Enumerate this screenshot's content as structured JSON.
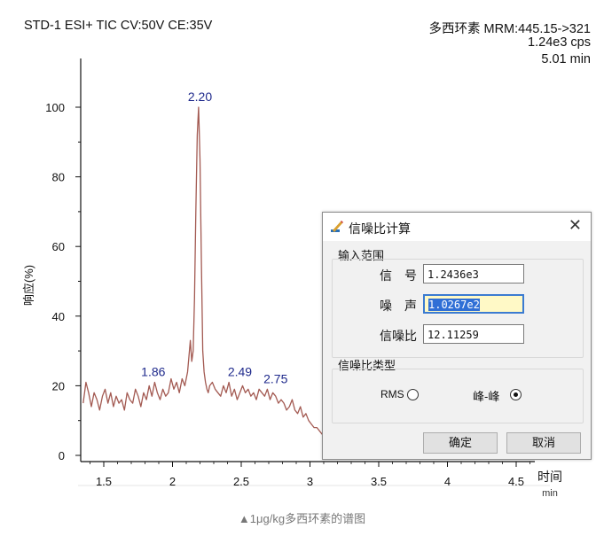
{
  "header": {
    "left": "STD-1 ESI+ TIC CV:50V CE:35V",
    "right_line1": "多西环素 MRM:445.15->321",
    "right_line2": "1.24e3 cps",
    "right_line3": "5.01 min"
  },
  "caption": "▲1μg/kg多西环素的谱图",
  "chart_data": {
    "type": "line",
    "title": "STD-1 ESI+ TIC CV:50V CE:35V",
    "xlabel": "时间",
    "xunit": "min",
    "ylabel": "响应(%)",
    "xlim": [
      1.35,
      4.65
    ],
    "ylim": [
      0,
      100
    ],
    "x_ticks": [
      "1.5",
      "2",
      "2.5",
      "3",
      "3.5",
      "4",
      "4.5"
    ],
    "y_ticks": [
      "0",
      "20",
      "40",
      "60",
      "80",
      "100"
    ],
    "line_color": "#a35a52",
    "series": [
      {
        "x": [
          1.35,
          1.37,
          1.39,
          1.41,
          1.43,
          1.45,
          1.47,
          1.49,
          1.51,
          1.53,
          1.55,
          1.57,
          1.59,
          1.61,
          1.63,
          1.65,
          1.67,
          1.69,
          1.71,
          1.73,
          1.75,
          1.77,
          1.79,
          1.81,
          1.83,
          1.85,
          1.87,
          1.89,
          1.91,
          1.93,
          1.95,
          1.97,
          1.99,
          2.01,
          2.03,
          2.05,
          2.07,
          2.09,
          2.11,
          2.13,
          2.14,
          2.15,
          2.16,
          2.17,
          2.18,
          2.19,
          2.2,
          2.21,
          2.22,
          2.23,
          2.24,
          2.25,
          2.26,
          2.27,
          2.29,
          2.31,
          2.33,
          2.35,
          2.37,
          2.39,
          2.41,
          2.43,
          2.45,
          2.47,
          2.49,
          2.51,
          2.53,
          2.55,
          2.57,
          2.59,
          2.61,
          2.63,
          2.65,
          2.67,
          2.69,
          2.71,
          2.73,
          2.75,
          2.77,
          2.79,
          2.81,
          2.83,
          2.85,
          2.87,
          2.89,
          2.91,
          2.93,
          2.95,
          2.97,
          2.99,
          3.01,
          3.03,
          3.05,
          3.07,
          3.09
        ],
        "y": [
          15,
          21,
          18,
          14,
          18,
          16,
          13,
          17,
          19,
          15,
          18,
          14,
          17,
          15,
          16,
          13,
          18,
          16,
          15,
          19,
          17,
          14,
          18,
          16,
          20,
          17,
          21,
          18,
          16,
          19,
          17,
          18,
          22,
          19,
          21,
          18,
          22,
          20,
          24,
          33,
          27,
          30,
          45,
          70,
          92,
          100,
          85,
          55,
          30,
          24,
          21,
          19,
          18,
          20,
          21,
          19,
          18,
          17,
          20,
          18,
          21,
          17,
          19,
          16,
          18,
          20,
          18,
          19,
          17,
          18,
          16,
          19,
          18,
          17,
          19,
          16,
          18,
          17,
          15,
          16,
          15,
          13,
          14,
          16,
          13,
          12,
          14,
          11,
          12,
          10,
          9,
          8,
          8,
          7,
          6
        ]
      }
    ],
    "annotations": [
      {
        "x": 2.2,
        "y": 100,
        "text": "2.20"
      },
      {
        "x": 1.86,
        "y": 21,
        "text": "1.86"
      },
      {
        "x": 2.49,
        "y": 21,
        "text": "2.49"
      },
      {
        "x": 2.75,
        "y": 19,
        "text": "2.75"
      }
    ]
  },
  "dialog": {
    "title": "信噪比计算",
    "group_range": "输入范围",
    "signal_label": "信　号",
    "signal_value": "1.2436e3",
    "noise_label": "噪　声",
    "noise_value": "1.0267e2",
    "snr_label": "信噪比",
    "snr_value": "12.11259",
    "group_type": "信噪比类型",
    "rms_label": "RMS",
    "pp_label": "峰-峰",
    "selected_type": "峰-峰",
    "ok_label": "确定",
    "cancel_label": "取消",
    "close_symbol": "✕"
  }
}
